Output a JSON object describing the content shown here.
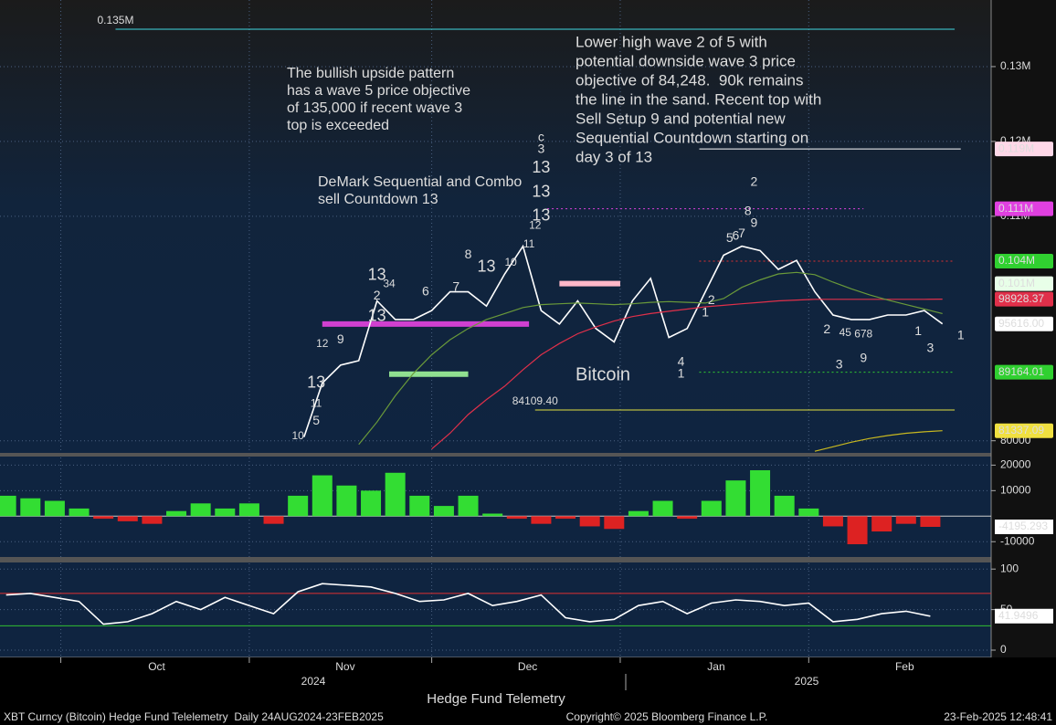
{
  "title": "Hedge Fund Telemetry",
  "footer": {
    "left": "XBT Curncy (Bitcoin) Hedge Fund Telelemetry  Daily 24AUG2024-23FEB2025",
    "center": "Copyright© 2025 Bloomberg Finance L.P.",
    "right": "23-Feb-2025 12:48:41"
  },
  "chart_data": [
    {
      "type": "line",
      "xlim": [
        "2024-09-21",
        "2025-03-03"
      ],
      "ylim": [
        78500,
        138900
      ],
      "xticks": [
        {
          "value": "2024-10-01",
          "label": "Oct"
        },
        {
          "value": "2024-11-01",
          "label": "Nov"
        },
        {
          "value": "2024-12-01",
          "label": "Dec"
        },
        {
          "value": "2025-01-01",
          "label": "Jan"
        },
        {
          "value": "2025-02-01",
          "label": "Feb"
        }
      ],
      "x_years": [
        "2024",
        "2025"
      ],
      "yticks": [
        80000,
        {
          "value": 110000,
          "label": "0.11M"
        },
        {
          "value": 120000,
          "label": "0.12M"
        },
        {
          "value": 130000,
          "label": "0.13M"
        }
      ],
      "grid": true,
      "x": [
        "2024-11-10",
        "2024-11-13",
        "2024-11-16",
        "2024-11-19",
        "2024-11-22",
        "2024-11-25",
        "2024-11-28",
        "2024-12-01",
        "2024-12-04",
        "2024-12-07",
        "2024-12-10",
        "2024-12-13",
        "2024-12-16",
        "2024-12-19",
        "2024-12-22",
        "2024-12-25",
        "2024-12-28",
        "2024-12-31",
        "2025-01-03",
        "2025-01-06",
        "2025-01-09",
        "2025-01-12",
        "2025-01-15",
        "2025-01-18",
        "2025-01-21",
        "2025-01-24",
        "2025-01-27",
        "2025-01-30",
        "2025-02-02",
        "2025-02-05",
        "2025-02-08",
        "2025-02-11",
        "2025-02-14",
        "2025-02-17",
        "2025-02-20",
        "2025-02-23"
      ],
      "series": [
        {
          "name": "Bitcoin",
          "color": "#ffffff",
          "values": [
            80500,
            87700,
            90100,
            90700,
            98700,
            96200,
            96200,
            97400,
            99900,
            99900,
            98000,
            102300,
            106000,
            97400,
            95600,
            98700,
            95000,
            93200,
            98700,
            101700,
            93800,
            95000,
            99900,
            104800,
            106000,
            105400,
            102900,
            104100,
            99900,
            96800,
            96200,
            96200,
            96800,
            96800,
            97400,
            95616
          ]
        },
        {
          "color": "#e0304a",
          "values": [
            null,
            null,
            null,
            null,
            null,
            null,
            null,
            78900,
            81000,
            83500,
            85500,
            87300,
            89500,
            91500,
            93000,
            94300,
            95200,
            96000,
            96600,
            97000,
            97300,
            97600,
            97900,
            98100,
            98300,
            98500,
            98700,
            98800,
            98900,
            98900,
            98900,
            98900,
            98900,
            98900,
            98900,
            98928.37
          ]
        },
        {
          "color": "#6a9a3a",
          "values": [
            null,
            null,
            null,
            79500,
            82500,
            86000,
            89000,
            91500,
            93500,
            95000,
            96200,
            97000,
            97800,
            98200,
            98300,
            98400,
            98300,
            98200,
            98300,
            98500,
            98600,
            98500,
            98400,
            99000,
            100500,
            101500,
            102300,
            102500,
            102200,
            101200,
            100300,
            99500,
            98800,
            98200,
            97600,
            97000
          ]
        },
        {
          "color": "#c8b820",
          "values": [
            null,
            null,
            null,
            null,
            null,
            null,
            null,
            null,
            null,
            null,
            null,
            null,
            null,
            null,
            null,
            null,
            null,
            null,
            null,
            null,
            null,
            null,
            null,
            null,
            null,
            null,
            null,
            null,
            78600,
            79200,
            79800,
            80300,
            80700,
            81000,
            81200,
            81337.09
          ]
        }
      ],
      "reference_lines": [
        {
          "value": 135000,
          "label": "0.135M",
          "color": "#40d8e0",
          "start": "2024-10-10",
          "end": "2025-02-25",
          "dash": false
        },
        {
          "value": 84109.4,
          "label": "84109.40",
          "color": "#e0e040",
          "start": "2024-12-18",
          "end": "2025-02-25",
          "dash": false
        },
        {
          "value": 119000,
          "color": "#ffffff",
          "start": "2025-01-14",
          "end": "2025-02-26",
          "dash": false
        },
        {
          "value": 111000,
          "color": "#e040e0",
          "start": "2024-12-20",
          "end": "2025-02-10",
          "dash": true
        },
        {
          "value": 104000,
          "color": "#e03030",
          "start": "2025-01-14",
          "end": "2025-02-25",
          "dash": true
        },
        {
          "value": 89164.01,
          "color": "#30d030",
          "start": "2025-01-14",
          "end": "2025-02-25",
          "dash": true
        }
      ],
      "segments": [
        {
          "value": 101000,
          "color": "#ffb8c8",
          "start": "2024-12-22",
          "end": "2025-01-01"
        },
        {
          "value": 88900,
          "color": "#90e090",
          "start": "2024-11-24",
          "end": "2024-12-07"
        },
        {
          "value": 95600,
          "color": "#d040d0",
          "start": "2024-11-13",
          "end": "2024-12-17"
        }
      ],
      "tags": [
        {
          "value": 119000,
          "label": "0.119M",
          "bg": "#ffd8e8",
          "fg": "#000000"
        },
        {
          "value": 111000,
          "label": "0.111M",
          "bg": "#e040e0",
          "fg": "#ffffff"
        },
        {
          "value": 104000,
          "label": "0.104M",
          "bg": "#30d030",
          "fg": "#000000"
        },
        {
          "value": 101000,
          "label": "0.101M",
          "bg": "#e8ffe8",
          "fg": "#000000"
        },
        {
          "value": 98928.37,
          "label": "98928.37",
          "bg": "#e0304a",
          "fg": "#ffffff"
        },
        {
          "value": 95616,
          "label": "95616.00",
          "bg": "#ffffff",
          "fg": "#000000"
        },
        {
          "value": 89164.01,
          "label": "89164.01",
          "bg": "#30d030",
          "fg": "#000000"
        },
        {
          "value": 81337.09,
          "label": "81337.09",
          "bg": "#f0e040",
          "fg": "#000000"
        }
      ],
      "td_counts": [
        {
          "x": "2024-11-12",
          "value": 87700,
          "label": "13",
          "color": "#e040e0"
        },
        {
          "x": "2024-11-22",
          "value": 102100,
          "label": "13",
          "color": "#e040e0"
        },
        {
          "x": "2024-11-22",
          "value": 96600,
          "label": "13",
          "color": "#e040e0"
        },
        {
          "x": "2024-12-10",
          "value": 103200,
          "label": "13",
          "color": "#e040e0"
        },
        {
          "x": "2024-12-19",
          "value": 116400,
          "label": "13",
          "color": "#e040e0"
        },
        {
          "x": "2024-12-19",
          "value": 110000,
          "label": "13",
          "color": "#e040e0"
        },
        {
          "x": "2024-12-19",
          "value": 113200,
          "label": "13",
          "color": "#e03030"
        },
        {
          "x": "2024-11-16",
          "value": 93500,
          "label": "9",
          "color": "#40e040"
        },
        {
          "x": "2025-01-23",
          "value": 109000,
          "label": "9",
          "color": "#40e040"
        },
        {
          "x": "2025-02-10",
          "value": 91000,
          "label": "9",
          "color": "#40e040"
        },
        {
          "x": "2025-01-23",
          "value": 114500,
          "label": "2",
          "color": "#f0e040"
        },
        {
          "x": "2024-12-19",
          "value": 120500,
          "label": "c",
          "color": "#f0e040"
        },
        {
          "x": "2024-12-19",
          "value": 118900,
          "label": "3",
          "color": "#40d0e0"
        },
        {
          "x": "2024-12-14",
          "value": 103800,
          "label": "10",
          "color": "#e03030"
        },
        {
          "x": "2024-12-17",
          "value": 106200,
          "label": "11",
          "color": "#e03030"
        },
        {
          "x": "2024-12-18",
          "value": 108700,
          "label": "12",
          "color": "#e03030"
        },
        {
          "x": "2024-12-07",
          "value": 104800,
          "label": "8",
          "color": "#e03030"
        },
        {
          "x": "2024-11-30",
          "value": 99900,
          "label": "6",
          "color": "#e03030"
        },
        {
          "x": "2024-12-05",
          "value": 100500,
          "label": "7",
          "color": "#e03030"
        },
        {
          "x": "2025-01-22",
          "value": 110600,
          "label": "8",
          "color": "#40e040"
        },
        {
          "x": "2025-01-19",
          "value": 107000,
          "label": "5",
          "color": "#40e040"
        },
        {
          "x": "2025-01-20",
          "value": 107300,
          "label": "6",
          "color": "#40e040"
        },
        {
          "x": "2025-01-21",
          "value": 107600,
          "label": "7",
          "color": "#40e040"
        },
        {
          "x": "2025-02-04",
          "value": 94800,
          "label": "2",
          "color": "#40e040"
        },
        {
          "x": "2025-02-19",
          "value": 94600,
          "label": "1",
          "color": "#e03030"
        },
        {
          "x": "2025-02-21",
          "value": 92300,
          "label": "3",
          "color": "#e03030"
        },
        {
          "x": "2025-02-26",
          "value": 94000,
          "label": "1",
          "color": "#40e040"
        },
        {
          "x": "2025-02-06",
          "value": 90100,
          "label": "3",
          "color": "#40e040"
        },
        {
          "x": "2025-01-11",
          "value": 88900,
          "label": "1",
          "color": "#f0e040"
        },
        {
          "x": "2025-01-11",
          "value": 90500,
          "label": "4",
          "color": "#40d0e0"
        },
        {
          "x": "2025-01-16",
          "value": 98700,
          "label": "2",
          "color": "#40e040"
        },
        {
          "x": "2025-01-15",
          "value": 97100,
          "label": "1",
          "color": "#40e040"
        },
        {
          "x": "2024-11-12",
          "value": 84900,
          "label": "11",
          "color": "#e03030"
        },
        {
          "x": "2024-11-12",
          "value": 82600,
          "label": "5",
          "color": "#40e040"
        },
        {
          "x": "2024-11-09",
          "value": 80600,
          "label": "10",
          "color": "#e03030"
        },
        {
          "x": "2024-11-13",
          "value": 92900,
          "label": "12",
          "color": "#e03030"
        },
        {
          "x": "2024-11-24",
          "value": 100900,
          "label": "34",
          "color": "#e03030"
        },
        {
          "x": "2024-11-22",
          "value": 99300,
          "label": "2",
          "color": "#e03030"
        },
        {
          "x": "2025-02-07",
          "value": 94400,
          "label": "45",
          "color": "#40e040"
        },
        {
          "x": "2025-02-10",
          "value": 94200,
          "label": "678",
          "color": "#40e040"
        }
      ],
      "annotations": [
        [
          "The bullish upside pattern",
          "has a wave 5 price objective",
          "of 135,000 if recent wave 3",
          "top is exceeded"
        ],
        [
          "DeMark Sequential and Combo",
          "sell Countdown 13"
        ],
        [
          "Lower high wave 2 of 5 with",
          "potential downside wave 3 price",
          "objective of 84,248.  90k remains",
          "the line in the sand. Recent top with",
          "Sell Setup 9 and potential new",
          "Sequential Countdown starting on",
          "day 3 of 13"
        ]
      ]
    },
    {
      "type": "bar",
      "xlim": [
        "2024-09-21",
        "2025-03-03"
      ],
      "ylim": [
        -16000,
        23000
      ],
      "yticks": [
        -10000,
        10000,
        20000
      ],
      "colors": {
        "positive": "#33dd33",
        "negative": "#dd2222"
      },
      "x": [
        "2024-09-22",
        "2024-09-26",
        "2024-09-30",
        "2024-10-04",
        "2024-10-08",
        "2024-10-12",
        "2024-10-16",
        "2024-10-20",
        "2024-10-24",
        "2024-10-28",
        "2024-11-01",
        "2024-11-05",
        "2024-11-09",
        "2024-11-13",
        "2024-11-17",
        "2024-11-21",
        "2024-11-25",
        "2024-11-29",
        "2024-12-03",
        "2024-12-07",
        "2024-12-11",
        "2024-12-15",
        "2024-12-19",
        "2024-12-23",
        "2024-12-27",
        "2024-12-31",
        "2025-01-04",
        "2025-01-08",
        "2025-01-12",
        "2025-01-16",
        "2025-01-20",
        "2025-01-24",
        "2025-01-28",
        "2025-02-01",
        "2025-02-05",
        "2025-02-09",
        "2025-02-13",
        "2025-02-17",
        "2025-02-21"
      ],
      "values": [
        8000,
        7000,
        6000,
        3000,
        -1000,
        -2000,
        -3000,
        2000,
        5000,
        3000,
        5000,
        -3000,
        8000,
        16000,
        12000,
        10000,
        17000,
        8000,
        4000,
        8000,
        1000,
        -1000,
        -3000,
        -1000,
        -4000,
        -5000,
        2000,
        6000,
        -1000,
        6000,
        14000,
        18000,
        8000,
        3000,
        -4000,
        -11000,
        -6000,
        -3000,
        -4195.293
      ]
    },
    {
      "type": "line",
      "xlim": [
        "2024-09-21",
        "2025-03-03"
      ],
      "ylim": [
        -9,
        107
      ],
      "yticks": [
        0,
        50,
        100
      ],
      "levels": [
        {
          "value": 70,
          "color": "#e03030"
        },
        {
          "value": 30,
          "color": "#30c030"
        }
      ],
      "x": [
        "2024-09-22",
        "2024-09-26",
        "2024-09-30",
        "2024-10-04",
        "2024-10-08",
        "2024-10-12",
        "2024-10-16",
        "2024-10-20",
        "2024-10-24",
        "2024-10-28",
        "2024-11-01",
        "2024-11-05",
        "2024-11-09",
        "2024-11-13",
        "2024-11-17",
        "2024-11-21",
        "2024-11-25",
        "2024-11-29",
        "2024-12-03",
        "2024-12-07",
        "2024-12-11",
        "2024-12-15",
        "2024-12-19",
        "2024-12-23",
        "2024-12-27",
        "2024-12-31",
        "2025-01-04",
        "2025-01-08",
        "2025-01-12",
        "2025-01-16",
        "2025-01-20",
        "2025-01-24",
        "2025-01-28",
        "2025-02-01",
        "2025-02-05",
        "2025-02-09",
        "2025-02-13",
        "2025-02-17",
        "2025-02-21"
      ],
      "series": [
        {
          "color": "#ffffff",
          "values": [
            68,
            70,
            65,
            60,
            32,
            35,
            45,
            60,
            50,
            65,
            55,
            45,
            72,
            82,
            80,
            78,
            70,
            60,
            62,
            70,
            55,
            60,
            68,
            40,
            35,
            38,
            55,
            60,
            45,
            58,
            62,
            60,
            55,
            58,
            35,
            38,
            45,
            48,
            41.9496
          ]
        }
      ]
    }
  ]
}
